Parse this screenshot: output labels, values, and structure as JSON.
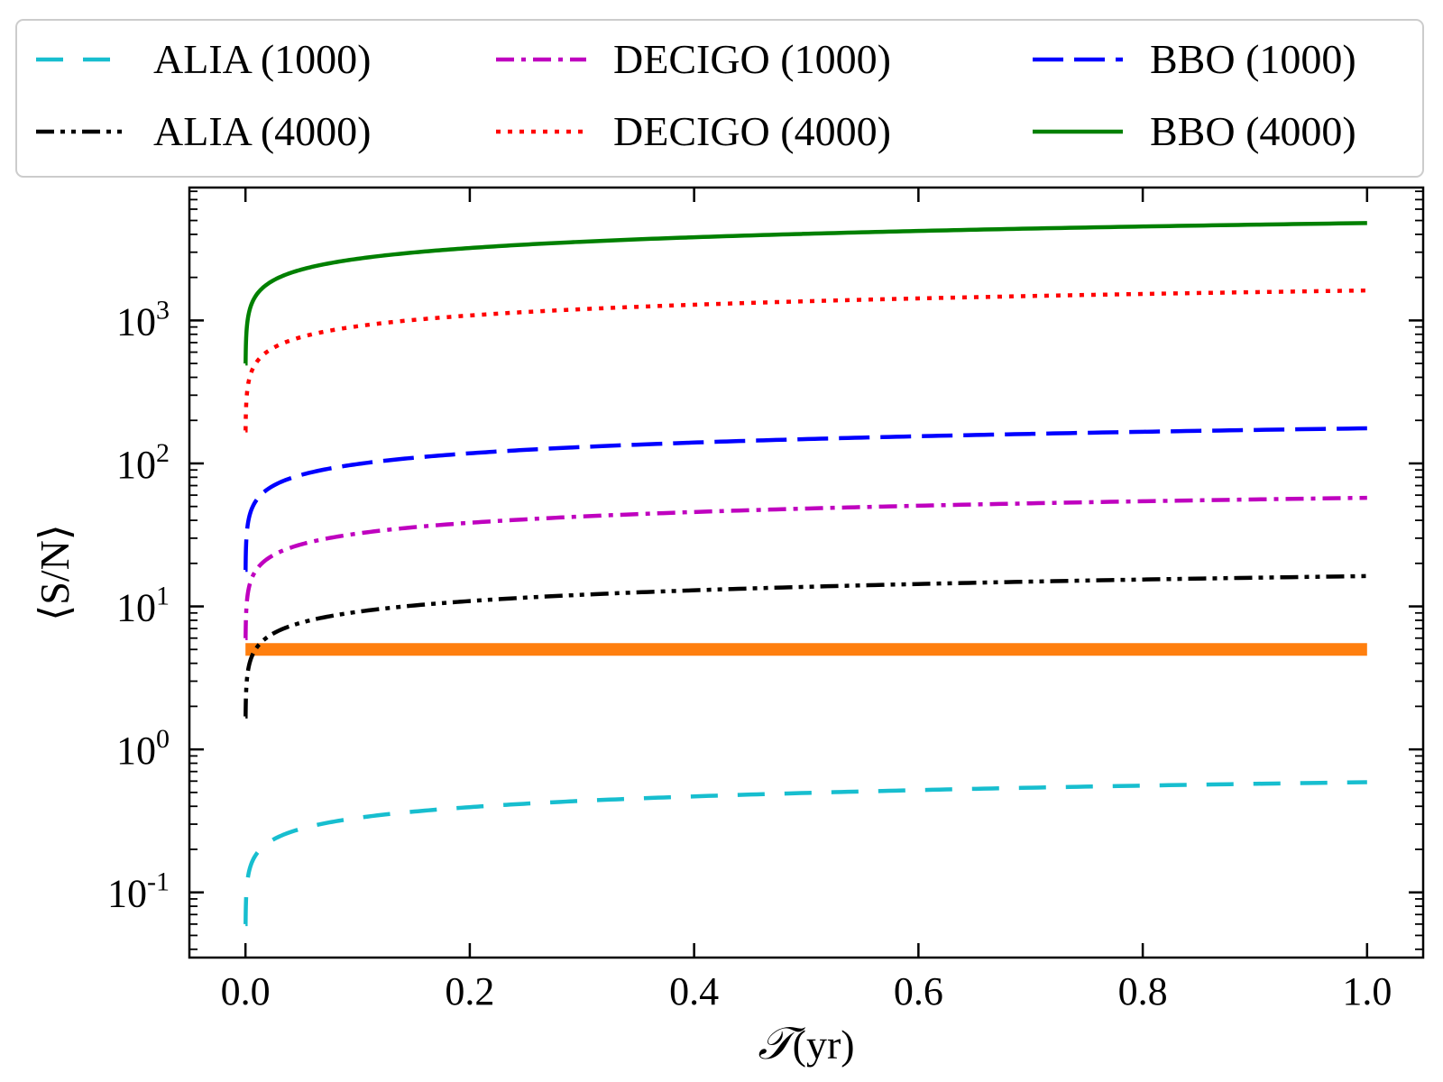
{
  "chart_data": {
    "type": "line",
    "title": "",
    "xlabel": {
      "symbol": "𝒯",
      "unit": "(yr)"
    },
    "ylabel": "⟨S/N⟩",
    "xlim": [
      -0.05,
      1.05
    ],
    "ylim": [
      0.035,
      8500
    ],
    "yscale": "log",
    "grid": false,
    "legend_position": "top",
    "x_ticks": [
      "0.0",
      "0.2",
      "0.4",
      "0.6",
      "0.8",
      "1.0"
    ],
    "x_tick_values": [
      0,
      0.2,
      0.4,
      0.6,
      0.8,
      1.0
    ],
    "y_ticks": [
      {
        "value": 0.1,
        "base": "10",
        "exp": "-1"
      },
      {
        "value": 1,
        "base": "10",
        "exp": "0"
      },
      {
        "value": 10,
        "base": "10",
        "exp": "1"
      },
      {
        "value": 100,
        "base": "10",
        "exp": "2"
      },
      {
        "value": 1000,
        "base": "10",
        "exp": "3"
      }
    ],
    "series": [
      {
        "name": "ALIA (1000)",
        "color": "#17becf",
        "dash": "dashed",
        "amplitude": 0.59,
        "start_y": 0.06
      },
      {
        "name": "ALIA (4000)",
        "color": "#000000",
        "dash": "dashdotdot",
        "amplitude": 16.3,
        "start_y": 1.7
      },
      {
        "name": "DECIGO (1000)",
        "color": "#bf00bf",
        "dash": "dashdot",
        "amplitude": 57.5,
        "start_y": 6
      },
      {
        "name": "DECIGO (4000)",
        "color": "#ff0000",
        "dash": "dotted",
        "amplitude": 1620,
        "start_y": 170
      },
      {
        "name": "BBO (1000)",
        "color": "#0000ff",
        "dash": "longdash",
        "amplitude": 176,
        "start_y": 18
      },
      {
        "name": "BBO (4000)",
        "color": "#008000",
        "dash": "solid",
        "amplitude": 4800,
        "start_y": 500
      }
    ],
    "threshold": {
      "value": 5,
      "x_range": [
        0,
        1
      ],
      "color": "#ff7f0e"
    }
  }
}
